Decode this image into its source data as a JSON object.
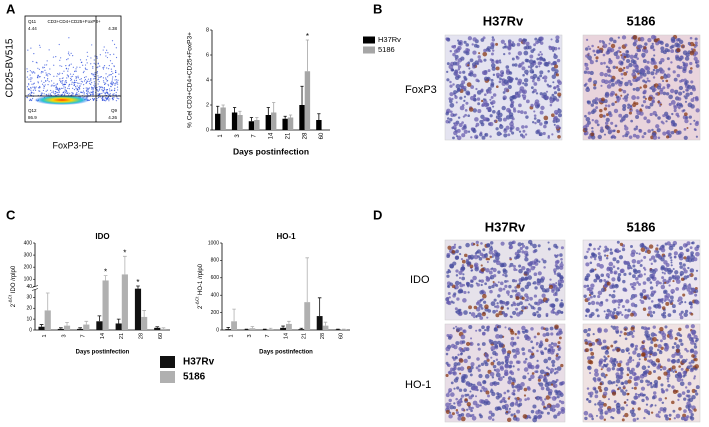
{
  "panel_labels": [
    "A",
    "B",
    "C",
    "D"
  ],
  "flow_plot": {
    "y_label": "CD25-BV515",
    "x_label": "FoxP3-PE",
    "gate": "CD3+CD4+CD25+FoxP3+",
    "quadrants": [
      {
        "name": "Q11",
        "value": 4.44
      },
      {
        "value": 4.38
      },
      {
        "name": "Q12",
        "value": 86.9
      },
      {
        "name": "Q9",
        "value": 4.26
      }
    ]
  },
  "chart_data": [
    {
      "type": "bar",
      "y_label": "% Cel CD3+CD4+CD25+FoxP3+",
      "x_label": "Days postinfection",
      "categories": [
        "1",
        "3",
        "7",
        "14",
        "21",
        "28",
        "60"
      ],
      "ylim": [
        0,
        8
      ],
      "yticks": [
        0,
        2,
        4,
        6,
        8
      ],
      "series": [
        {
          "name": "H37Rv",
          "color": "#000000",
          "values": [
            1.3,
            1.4,
            0.7,
            1.2,
            0.9,
            2.0,
            0.8
          ],
          "errors": [
            0.6,
            0.4,
            0.3,
            0.6,
            0.2,
            1.5,
            0.5
          ]
        },
        {
          "name": "5186",
          "color": "#a6a6a6",
          "values": [
            1.8,
            1.2,
            0.8,
            1.4,
            1.0,
            4.7,
            null
          ],
          "errors": [
            0.2,
            0.3,
            0.2,
            0.8,
            0.2,
            2.5,
            null
          ],
          "significance": [
            null,
            null,
            null,
            null,
            null,
            "*",
            null
          ]
        }
      ]
    },
    {
      "type": "bar",
      "title": "IDO",
      "y_label": [
        "2",
        "-ΔCt",
        " IDO /rplp0"
      ],
      "x_label": "Days postinfection",
      "categories": [
        "1",
        "3",
        "7",
        "14",
        "21",
        "28",
        "60"
      ],
      "ylim": [
        0,
        400
      ],
      "ybreak": 40,
      "yticks": [
        0,
        10,
        20,
        30,
        40,
        100,
        200,
        300,
        400
      ],
      "series": [
        {
          "color": "#111111",
          "values": [
            3,
            1,
            1,
            8,
            6,
            38,
            2
          ],
          "errors": [
            2,
            1,
            1,
            5,
            4,
            6,
            1
          ],
          "significance": [
            null,
            null,
            null,
            null,
            null,
            "*",
            null
          ]
        },
        {
          "color": "#b0b0b0",
          "values": [
            18,
            4,
            5,
            90,
            140,
            12,
            1
          ],
          "errors": [
            16,
            3,
            3,
            40,
            150,
            6,
            1
          ],
          "significance": [
            null,
            null,
            null,
            "*",
            "*",
            null,
            null
          ]
        }
      ]
    },
    {
      "type": "bar",
      "title": "HO-1",
      "y_label": [
        "2",
        "-ΔCt",
        " HO-1 /rplp0"
      ],
      "x_label": "Days postinfection",
      "categories": [
        "1",
        "3",
        "7",
        "14",
        "21",
        "28",
        "60"
      ],
      "ylim": [
        0,
        1000
      ],
      "yticks": [
        0,
        200,
        400,
        600,
        800,
        1000
      ],
      "series": [
        {
          "color": "#111111",
          "values": [
            10,
            5,
            5,
            25,
            10,
            160,
            5
          ],
          "errors": [
            20,
            5,
            5,
            20,
            10,
            210,
            5
          ]
        },
        {
          "color": "#b0b0b0",
          "values": [
            100,
            20,
            10,
            70,
            320,
            50,
            5
          ],
          "errors": [
            140,
            20,
            10,
            30,
            510,
            40,
            5
          ]
        }
      ]
    }
  ],
  "shared_legend": [
    {
      "name": "H37Rv",
      "color": "#111111"
    },
    {
      "name": "5186",
      "color": "#b0b0b0"
    }
  ],
  "micrographs": {
    "B": {
      "columns": [
        "H37Rv",
        "5186"
      ],
      "rows": [
        "FoxP3"
      ]
    },
    "D": {
      "columns": [
        "H37Rv",
        "5186"
      ],
      "rows": [
        "IDO",
        "HO-1"
      ]
    }
  }
}
